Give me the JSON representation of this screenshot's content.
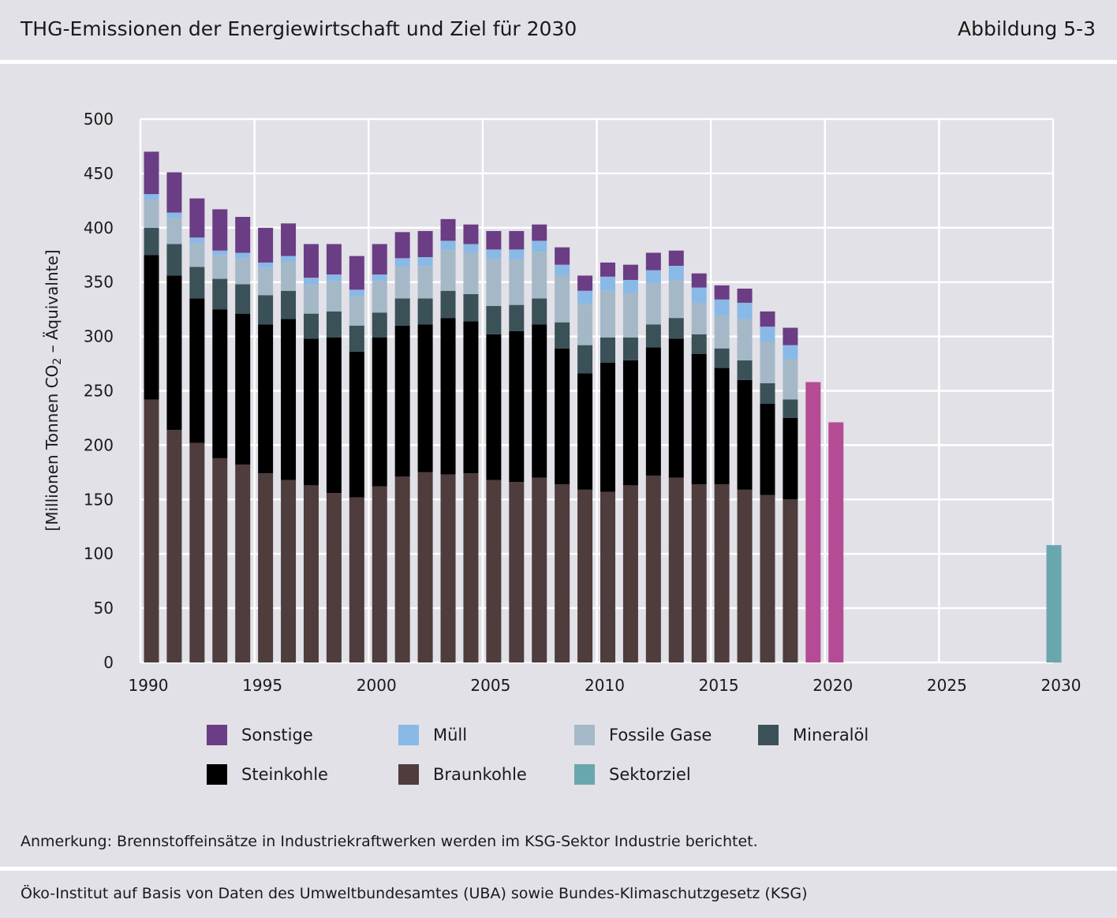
{
  "header": {
    "title": "THG-Emissionen der Energiewirtschaft und Ziel für 2030",
    "figure_label": "Abbildung 5-3"
  },
  "colors": {
    "Sonstige": "#6b3d84",
    "Müll": "#89b9e6",
    "Fossile Gase": "#a5b8c7",
    "Mineralöl": "#3a5158",
    "Steinkohle": "#000000",
    "Braunkohle": "#4f3c3d",
    "Sektorziel": "#6aa6ad",
    "Projektion": "#b54b94"
  },
  "chart_data": {
    "type": "bar",
    "stacked": true,
    "title": "THG-Emissionen der Energiewirtschaft und Ziel für 2030",
    "ylabel_parts": {
      "before": "[Millionen Tonnen CO",
      "sub": "2",
      "after": " – Äquivalnte]"
    },
    "xlim": [
      1990,
      2030
    ],
    "ylim": [
      0,
      500
    ],
    "x_ticks": [
      1990,
      1995,
      2000,
      2005,
      2010,
      2015,
      2020,
      2025,
      2030
    ],
    "y_ticks": [
      0,
      50,
      100,
      150,
      200,
      250,
      300,
      350,
      400,
      450,
      500
    ],
    "years": [
      1990,
      1991,
      1992,
      1993,
      1994,
      1995,
      1996,
      1997,
      1998,
      1999,
      2000,
      2001,
      2002,
      2003,
      2004,
      2005,
      2006,
      2007,
      2008,
      2009,
      2010,
      2011,
      2012,
      2013,
      2014,
      2015,
      2016,
      2017,
      2018
    ],
    "series": [
      {
        "name": "Braunkohle",
        "values": [
          242,
          214,
          202,
          188,
          182,
          174,
          168,
          163,
          156,
          152,
          162,
          171,
          175,
          173,
          174,
          168,
          166,
          170,
          164,
          159,
          157,
          163,
          172,
          170,
          164,
          164,
          159,
          154,
          150
        ]
      },
      {
        "name": "Steinkohle",
        "values": [
          133,
          142,
          133,
          137,
          139,
          137,
          148,
          135,
          143,
          134,
          137,
          139,
          136,
          144,
          140,
          134,
          139,
          141,
          125,
          107,
          119,
          115,
          118,
          128,
          120,
          107,
          101,
          84,
          75
        ]
      },
      {
        "name": "Mineralöl",
        "values": [
          25,
          29,
          29,
          28,
          27,
          27,
          26,
          23,
          24,
          24,
          23,
          25,
          24,
          25,
          25,
          26,
          24,
          24,
          24,
          26,
          23,
          21,
          21,
          19,
          18,
          18,
          18,
          19,
          17
        ]
      },
      {
        "name": "Fossile Gase",
        "values": [
          26,
          24,
          22,
          22,
          24,
          25,
          27,
          27,
          28,
          27,
          29,
          29,
          30,
          38,
          38,
          43,
          42,
          43,
          43,
          38,
          43,
          41,
          38,
          35,
          29,
          30,
          38,
          38,
          37
        ]
      },
      {
        "name": "Müll",
        "values": [
          5,
          5,
          5,
          4,
          5,
          5,
          5,
          6,
          6,
          6,
          6,
          8,
          8,
          8,
          8,
          9,
          9,
          10,
          10,
          12,
          13,
          12,
          12,
          13,
          14,
          15,
          15,
          14,
          13
        ]
      },
      {
        "name": "Sonstige",
        "values": [
          39,
          37,
          36,
          38,
          33,
          32,
          30,
          31,
          28,
          31,
          28,
          24,
          24,
          20,
          18,
          17,
          17,
          15,
          16,
          14,
          13,
          14,
          16,
          14,
          13,
          13,
          13,
          14,
          16
        ]
      }
    ],
    "projection": [
      {
        "year": 2019,
        "value": 258
      },
      {
        "year": 2020,
        "value": 221
      }
    ],
    "target": {
      "name": "Sektorziel",
      "year": 2030,
      "value": 108
    }
  },
  "legend": [
    {
      "name": "Sonstige",
      "row": 0,
      "col": 0
    },
    {
      "name": "Müll",
      "row": 0,
      "col": 1
    },
    {
      "name": "Fossile Gase",
      "row": 0,
      "col": 2
    },
    {
      "name": "Mineralöl",
      "row": 0,
      "col": 3
    },
    {
      "name": "Steinkohle",
      "row": 1,
      "col": 0
    },
    {
      "name": "Braunkohle",
      "row": 1,
      "col": 1
    },
    {
      "name": "Sektorziel",
      "row": 1,
      "col": 2
    }
  ],
  "footer": {
    "note": "Anmerkung: Brennstoffeinsätze in Industriekraftwerken werden im KSG-Sektor Industrie berichtet.",
    "source": "Öko-Institut auf Basis von Daten des Umweltbundesamtes (UBA) sowie Bundes-Klimaschutzgesetz (KSG)"
  }
}
